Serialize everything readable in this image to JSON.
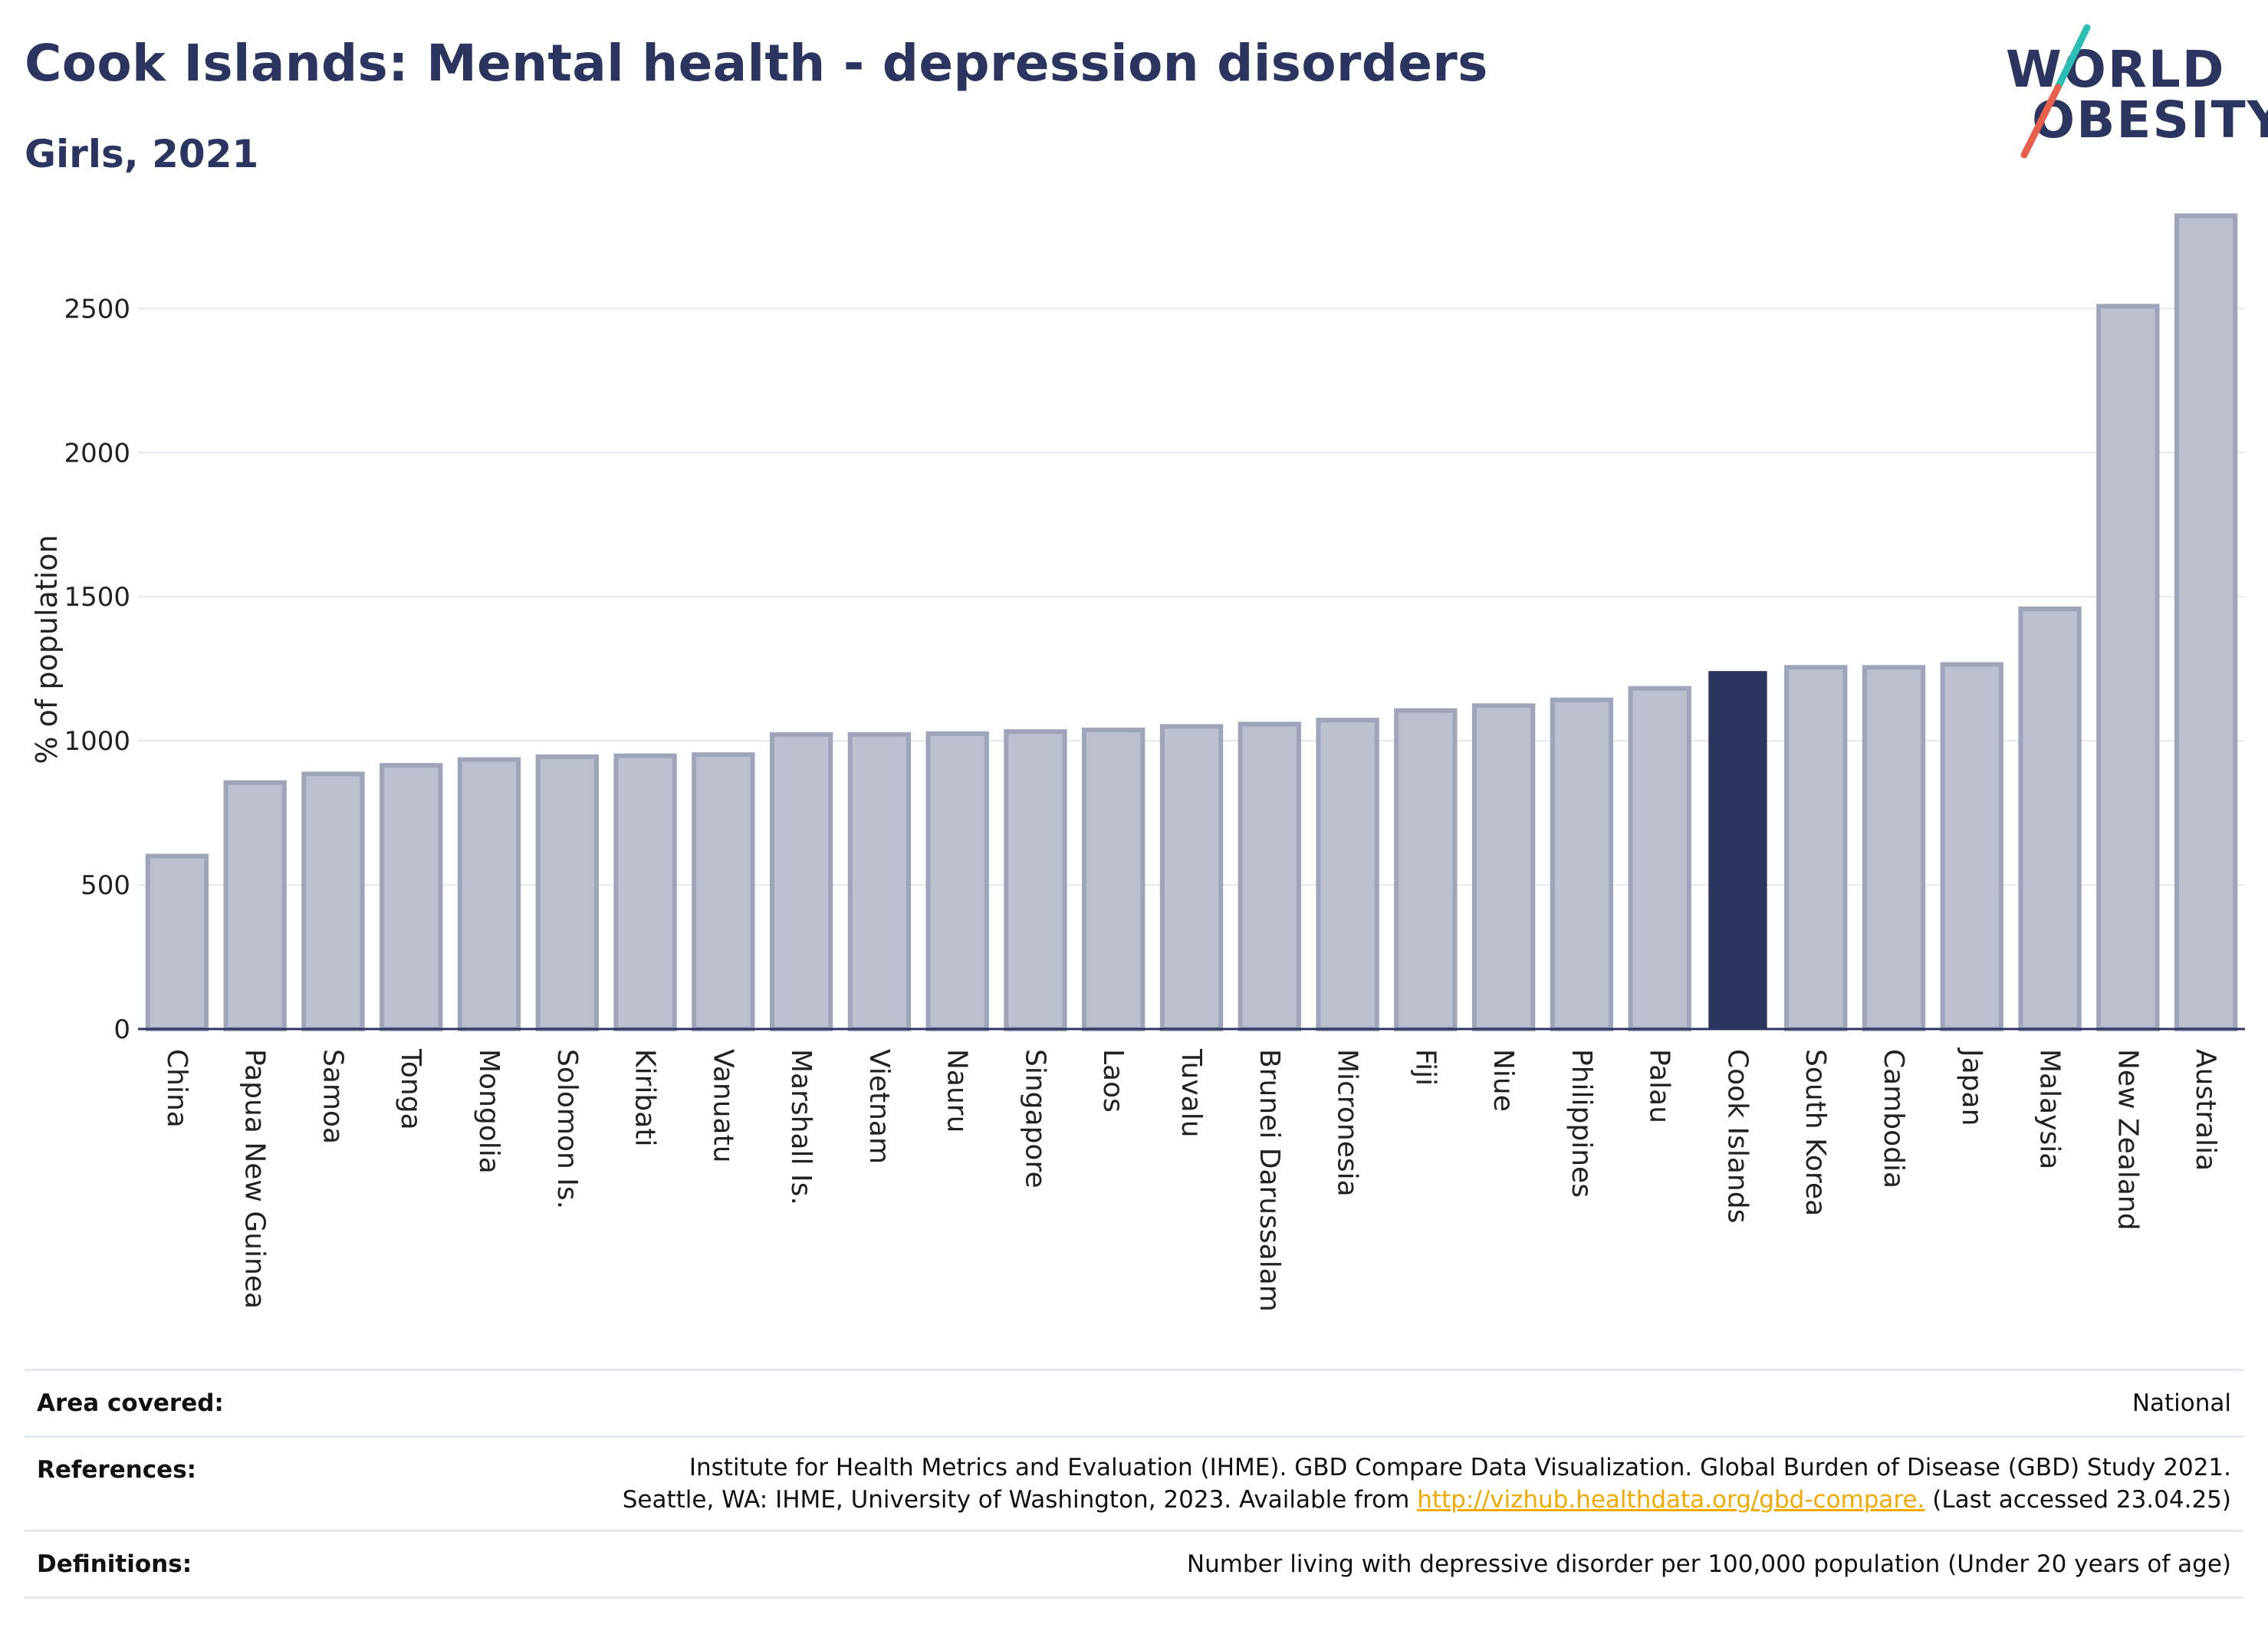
{
  "title": "Cook Islands: Mental health - depression disorders",
  "subtitle": "Girls, 2021",
  "logo": {
    "line1": "WORLD",
    "line2": "OBESITY",
    "slash_colors": [
      "#2bbfb3",
      "#e8604c"
    ]
  },
  "colors": {
    "bar": "#bcc0ce",
    "bar_stroke": "#9ea4b9",
    "highlight": "#2b3560",
    "grid": "#e6e8ee",
    "axis": "#2b3560"
  },
  "chart_data": {
    "type": "bar",
    "ylabel": "% of population",
    "xlabel": "",
    "ylim": [
      0,
      2900
    ],
    "yticks": [
      0,
      500,
      1000,
      1500,
      2000,
      2500
    ],
    "grid": true,
    "highlight": "Cook Islands",
    "categories": [
      "China",
      "Papua New Guinea",
      "Samoa",
      "Tonga",
      "Mongolia",
      "Solomon Is.",
      "Kiribati",
      "Vanuatu",
      "Marshall Is.",
      "Vietnam",
      "Nauru",
      "Singapore",
      "Laos",
      "Tuvalu",
      "Brunei Darussalam",
      "Micronesia",
      "Fiji",
      "Niue",
      "Philippines",
      "Palau",
      "Cook Islands",
      "South Korea",
      "Cambodia",
      "Japan",
      "Malaysia",
      "New Zealand",
      "Australia"
    ],
    "values": [
      600,
      855,
      885,
      915,
      935,
      945,
      948,
      952,
      1022,
      1022,
      1025,
      1032,
      1038,
      1050,
      1058,
      1072,
      1105,
      1122,
      1142,
      1182,
      1242,
      1255,
      1255,
      1265,
      1458,
      2508,
      2822
    ]
  },
  "info": {
    "area_label": "Area covered:",
    "area_value": "National",
    "ref_label": "References:",
    "ref_line1": "Institute for Health Metrics and Evaluation (IHME). GBD Compare Data Visualization. Global Burden of Disease (GBD) Study 2021.",
    "ref_line2_pre": "Seattle, WA: IHME, University of Washington, 2023. Available from ",
    "ref_link": "http://vizhub.healthdata.org/gbd-compare.",
    "ref_line2_post": " (Last accessed 23.04.25)",
    "def_label": "Definitions:",
    "def_value": "Number living with depressive disorder per 100,000 population (Under 20 years of age)"
  }
}
